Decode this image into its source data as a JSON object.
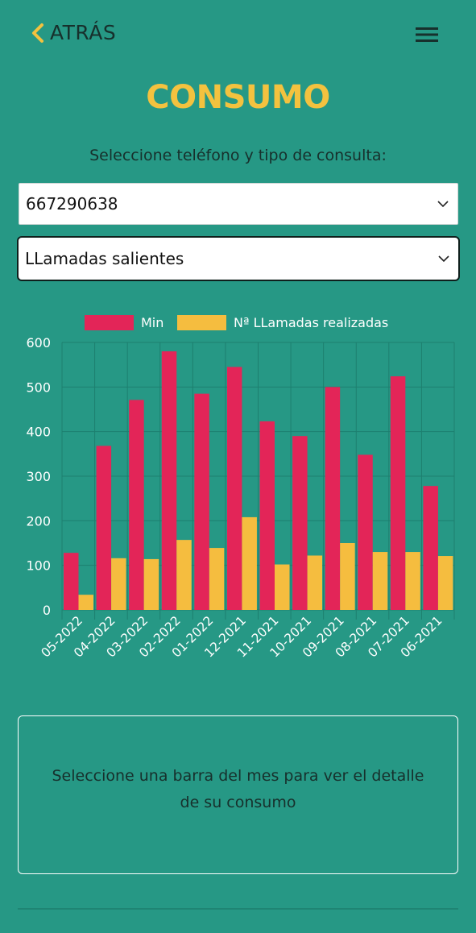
{
  "header": {
    "back_label": "ATRÁS",
    "title": "CONSUMO"
  },
  "form": {
    "prompt": "Seleccione teléfono y tipo de consulta:",
    "phone_value": "667290638",
    "type_value": "LLamadas salientes"
  },
  "colors": {
    "background": "#269885",
    "accent_yellow": "#f3c23f",
    "series_min": "#e32558",
    "series_calls": "#f5bd3f"
  },
  "icons": {
    "back": "chevron-left-icon",
    "menu": "hamburger-menu-icon",
    "dropdown": "chevron-down-icon"
  },
  "chart_data": {
    "type": "bar",
    "categories": [
      "05-2022",
      "04-2022",
      "03-2022",
      "02-2022",
      "01-2022",
      "12-2021",
      "11-2021",
      "10-2021",
      "09-2021",
      "08-2021",
      "07-2021",
      "06-2021"
    ],
    "series": [
      {
        "name": "Min",
        "color": "#e32558",
        "values": [
          128,
          368,
          471,
          580,
          485,
          545,
          423,
          390,
          500,
          348,
          524,
          278
        ]
      },
      {
        "name": "Nª LLamadas realizadas",
        "color": "#f5bd3f",
        "values": [
          34,
          116,
          114,
          157,
          139,
          208,
          102,
          122,
          150,
          130,
          130,
          121
        ]
      }
    ],
    "yticks": [
      "0",
      "100",
      "200",
      "300",
      "400",
      "500",
      "600"
    ],
    "ylim": [
      0,
      600
    ],
    "grid": true,
    "legend": "top"
  },
  "detail": {
    "text": "Seleccione una barra del mes para ver el detalle de su consumo"
  }
}
